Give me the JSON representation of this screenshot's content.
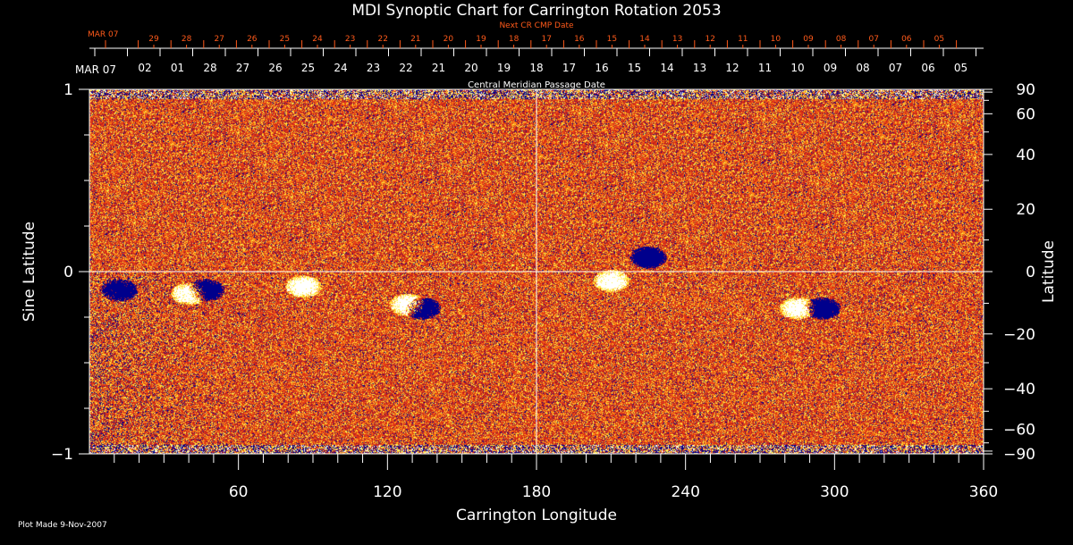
{
  "chart_data": {
    "type": "heatmap",
    "title": "MDI Synoptic Chart for Carrington Rotation 2053",
    "xlabel": "Carrington Longitude",
    "ylabel": "Sine Latitude",
    "ylabel_right": "Latitude",
    "xlim": [
      0,
      360
    ],
    "ylim": [
      -1,
      1
    ],
    "x_ticks": [
      60,
      120,
      180,
      240,
      300,
      360
    ],
    "y_ticks_left": [
      1,
      0,
      -1
    ],
    "y_ticks_right": [
      90,
      60,
      40,
      20,
      0,
      -20,
      -40,
      -60,
      -90
    ],
    "grid_lines": {
      "longitude": 180,
      "sine_latitude": 0
    },
    "top_axis_label": "Central Meridian Passage Date",
    "top_axis_start": "MAR 07",
    "top_axis_dates": [
      "02",
      "01",
      "28",
      "27",
      "26",
      "25",
      "24",
      "23",
      "22",
      "21",
      "20",
      "19",
      "18",
      "17",
      "16",
      "15",
      "14",
      "13",
      "12",
      "11",
      "10",
      "09",
      "08",
      "07",
      "06",
      "05"
    ],
    "next_axis_label": "Next CR CMP Date",
    "next_axis_start": "MAR 07",
    "next_axis_dates": [
      "29",
      "28",
      "27",
      "26",
      "25",
      "24",
      "23",
      "22",
      "21",
      "20",
      "19",
      "18",
      "17",
      "16",
      "15",
      "14",
      "13",
      "12",
      "11",
      "10",
      "09",
      "08",
      "07",
      "06",
      "05"
    ],
    "colors": {
      "background_field": "#e8401a",
      "positive": "#ffff60",
      "negative": "#000090",
      "strong": "#ffffff",
      "next_axis": "#ff5a1a",
      "axis": "#ffffff"
    }
  },
  "footer": "Plot Made  9-Nov-2007"
}
